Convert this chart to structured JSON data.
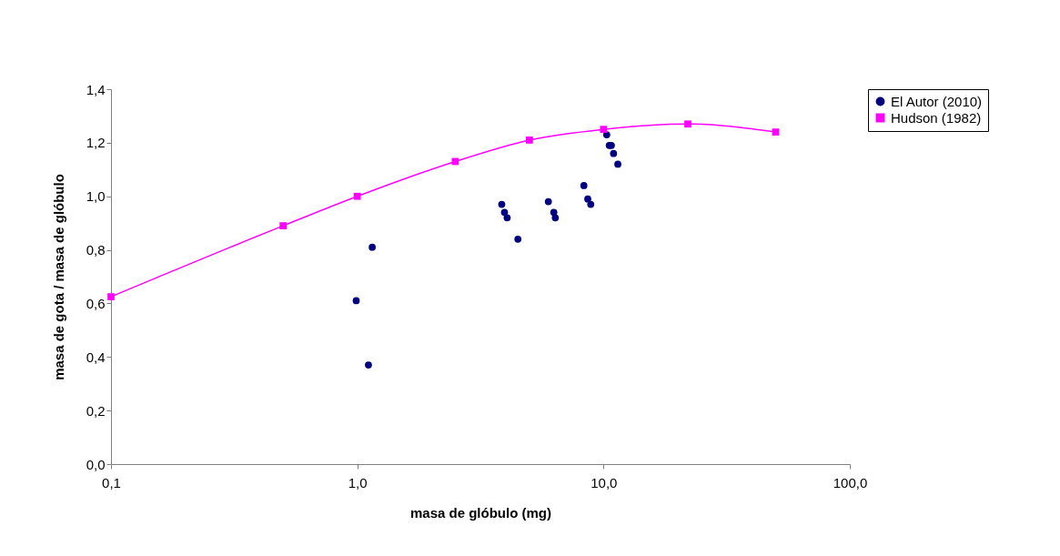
{
  "chart_data": {
    "type": "scatter",
    "xlabel": "masa de glóbulo (mg)",
    "ylabel": "masa de gota / masa de glóbulo",
    "log": "x",
    "xlim": [
      0.1,
      100
    ],
    "ylim": [
      0,
      1.4
    ],
    "xticks": [
      {
        "value": 0.1,
        "label": "0,1"
      },
      {
        "value": 1,
        "label": "1,0"
      },
      {
        "value": 10,
        "label": "10,0"
      },
      {
        "value": 100,
        "label": "100,0"
      }
    ],
    "yticks": [
      {
        "value": 0,
        "label": "0,0"
      },
      {
        "value": 0.2,
        "label": "0,2"
      },
      {
        "value": 0.4,
        "label": "0,4"
      },
      {
        "value": 0.6,
        "label": "0,6"
      },
      {
        "value": 0.8,
        "label": "0,8"
      },
      {
        "value": 1.0,
        "label": "1,0"
      },
      {
        "value": 1.2,
        "label": "1,2"
      },
      {
        "value": 1.4,
        "label": "1,4"
      }
    ],
    "grid": false,
    "legend": "right",
    "series": [
      {
        "name": "El Autor (2010)",
        "marker": "circle",
        "color": "#000080",
        "x": [
          0.99,
          1.15,
          1.11,
          3.86,
          3.96,
          4.06,
          4.49,
          5.97,
          6.28,
          6.37,
          8.32,
          8.63,
          8.87,
          10.3,
          10.55,
          10.76,
          10.98,
          11.43
        ],
        "values": [
          0.61,
          0.81,
          0.37,
          0.97,
          0.94,
          0.92,
          0.84,
          0.98,
          0.94,
          0.92,
          1.04,
          0.99,
          0.97,
          1.23,
          1.19,
          1.19,
          1.16,
          1.12
        ]
      },
      {
        "name": "Hudson (1982)",
        "type": "line",
        "marker": "square",
        "line_style": "solid",
        "color": "#ff00ff",
        "x": [
          0.1,
          0.5,
          1,
          2.5,
          5,
          10,
          22,
          50
        ],
        "values": [
          0.625,
          0.89,
          1.0,
          1.13,
          1.21,
          1.25,
          1.27,
          1.24
        ]
      }
    ]
  }
}
